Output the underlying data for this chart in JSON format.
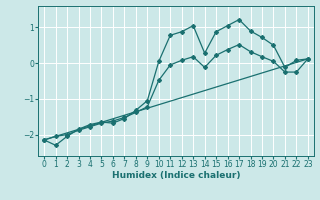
{
  "xlabel": "Humidex (Indice chaleur)",
  "bg_color": "#cce8e8",
  "grid_color": "#ffffff",
  "line_color": "#1a7070",
  "xlim": [
    -0.5,
    23.5
  ],
  "ylim": [
    -2.6,
    1.6
  ],
  "yticks": [
    -2,
    -1,
    0,
    1
  ],
  "xticks": [
    0,
    1,
    2,
    3,
    4,
    5,
    6,
    7,
    8,
    9,
    10,
    11,
    12,
    13,
    14,
    15,
    16,
    17,
    18,
    19,
    20,
    21,
    22,
    23
  ],
  "line1_x": [
    0,
    1,
    2,
    3,
    4,
    5,
    6,
    7,
    8,
    9,
    10,
    11,
    12,
    13,
    14,
    15,
    16,
    17,
    18,
    19,
    20,
    21,
    22,
    23
  ],
  "line1_y": [
    -2.15,
    -2.3,
    -2.05,
    -1.85,
    -1.72,
    -1.65,
    -1.68,
    -1.55,
    -1.32,
    -1.05,
    0.05,
    0.78,
    0.88,
    1.05,
    0.28,
    0.88,
    1.05,
    1.22,
    0.9,
    0.72,
    0.5,
    -0.12,
    0.08,
    0.12
  ],
  "line2_x": [
    0,
    1,
    2,
    3,
    4,
    5,
    6,
    7,
    8,
    9,
    10,
    11,
    12,
    13,
    14,
    15,
    16,
    17,
    18,
    19,
    20,
    21,
    22,
    23
  ],
  "line2_y": [
    -2.15,
    -2.05,
    -2.0,
    -1.88,
    -1.78,
    -1.68,
    -1.62,
    -1.52,
    -1.38,
    -1.22,
    -0.48,
    -0.05,
    0.08,
    0.18,
    -0.12,
    0.22,
    0.38,
    0.52,
    0.32,
    0.18,
    0.05,
    -0.25,
    -0.25,
    0.12
  ],
  "line3_x": [
    0,
    23
  ],
  "line3_y": [
    -2.15,
    0.12
  ]
}
